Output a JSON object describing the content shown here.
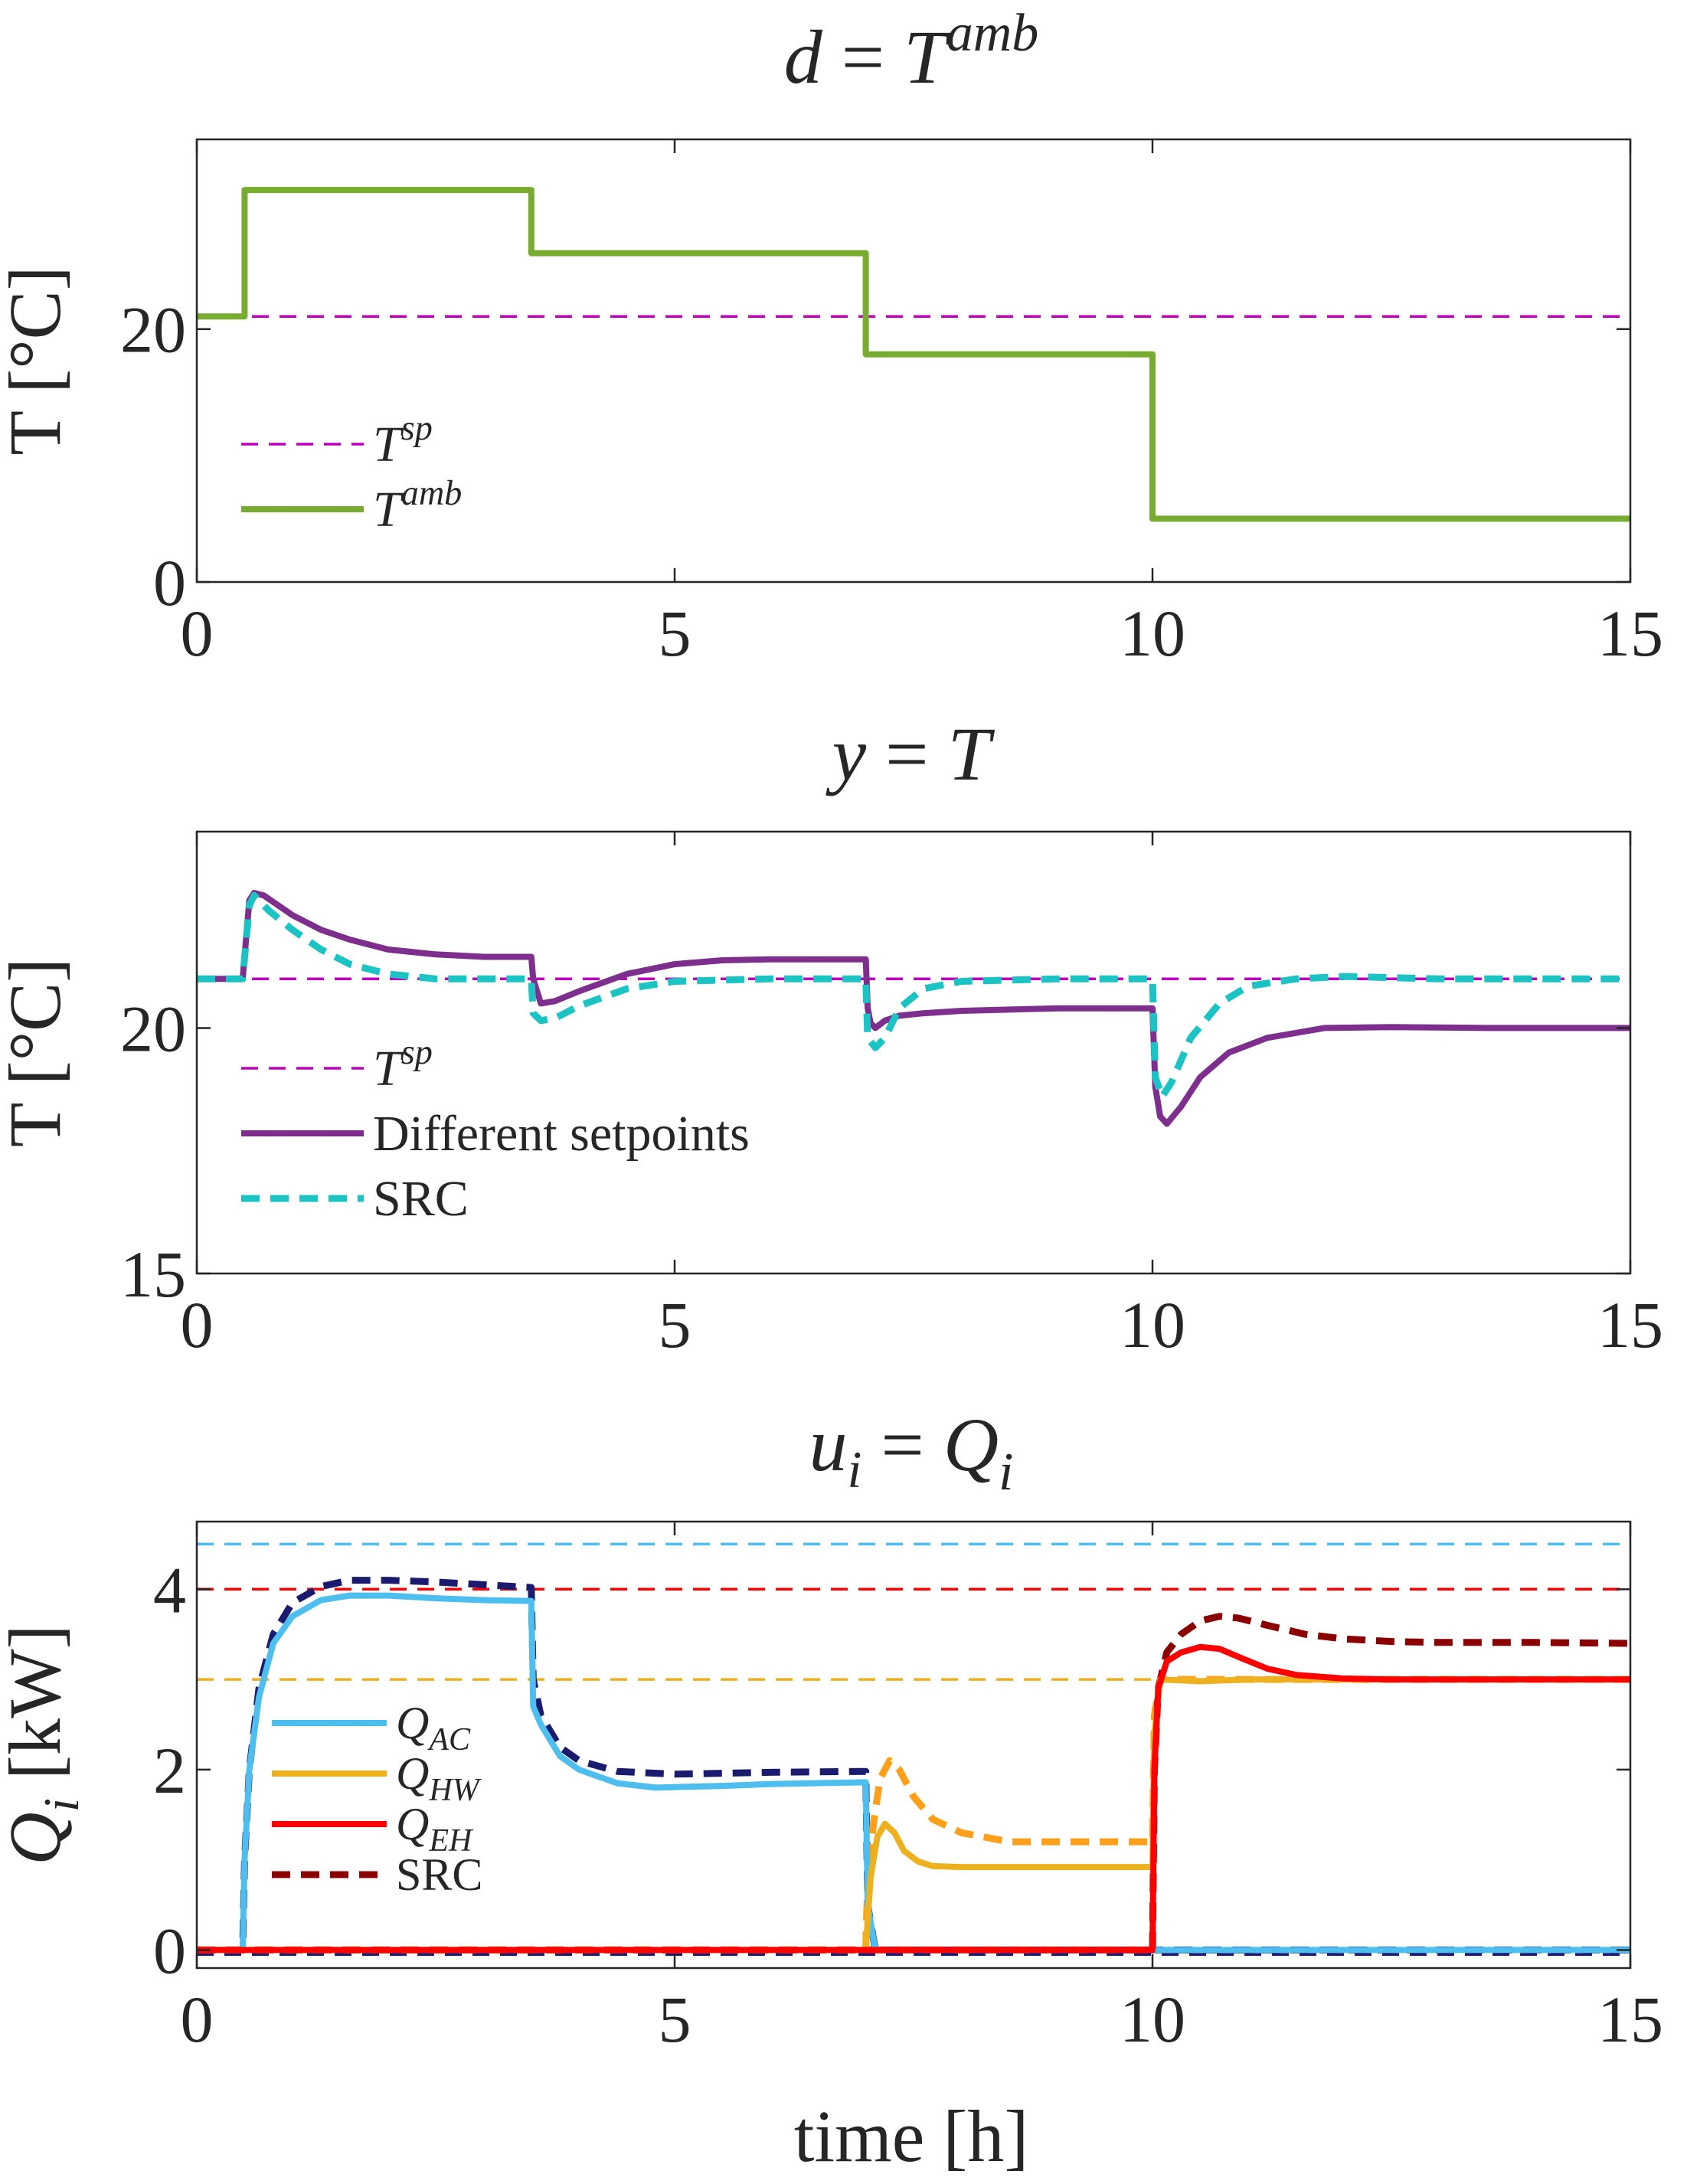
{
  "figure": {
    "xlabel": "time [h]"
  },
  "colors": {
    "axis": "#262626",
    "green": "#77ac30",
    "magenta": "#bf00bf",
    "purple": "#7e2f8e",
    "cyan": "#1bc3c3",
    "lightblue": "#4dbeee",
    "orange": "#edb120",
    "red": "#ff0000",
    "darkred": "#8b0000",
    "navy": "#1a1a6e",
    "srcOrange": "#ff9f1a"
  },
  "chart_data": [
    {
      "type": "line",
      "title": {
        "lhs": "d",
        "eq": "=",
        "base": "T",
        "sup": "amb"
      },
      "xlabel": "",
      "ylabel": "T [°C]",
      "xlim": [
        0,
        15
      ],
      "ylim": [
        0,
        35
      ],
      "xticks": [
        "0",
        "5",
        "10",
        "15"
      ],
      "xtick_values": [
        0,
        5,
        10,
        15
      ],
      "yticks": [
        "0",
        "20"
      ],
      "ytick_values": [
        0,
        20
      ],
      "legend": {
        "placement": "lower-left",
        "entries": [
          {
            "base": "T",
            "sup": "sp",
            "sub": ""
          },
          {
            "base": "T",
            "sup": "amb",
            "sub": ""
          }
        ]
      },
      "series": [
        {
          "name": "Tsp",
          "style": "thin-dashed",
          "color": "magenta",
          "x": [
            0,
            15
          ],
          "y": [
            21,
            21
          ]
        },
        {
          "name": "Tamb",
          "style": "thick-solid",
          "color": "green",
          "x": [
            0,
            0.5,
            0.5,
            3.5,
            3.5,
            7,
            7,
            10,
            10,
            15
          ],
          "y": [
            21,
            21,
            31,
            31,
            26,
            26,
            18,
            18,
            5,
            5
          ]
        }
      ]
    },
    {
      "type": "line",
      "title": {
        "lhs": "y",
        "eq": "=",
        "base": "T",
        "sup": ""
      },
      "xlabel": "",
      "ylabel": "T [°C]",
      "xlim": [
        0,
        15
      ],
      "ylim": [
        15,
        24
      ],
      "xticks": [
        "0",
        "5",
        "10",
        "15"
      ],
      "xtick_values": [
        0,
        5,
        10,
        15
      ],
      "yticks": [
        "15",
        "20"
      ],
      "ytick_values": [
        15,
        20
      ],
      "legend": {
        "placement": "lower-left",
        "entries": [
          {
            "base": "T",
            "sup": "sp",
            "sub": ""
          },
          {
            "text": "Different setpoints"
          },
          {
            "text": "SRC"
          }
        ]
      },
      "series": [
        {
          "name": "Tsp",
          "style": "thin-dashed",
          "color": "magenta",
          "x": [
            0,
            15
          ],
          "y": [
            21,
            21
          ]
        },
        {
          "name": "Different setpoints",
          "style": "thick-solid",
          "color": "purple",
          "x": [
            0,
            0.48,
            0.55,
            0.6,
            0.7,
            0.85,
            1.0,
            1.3,
            1.6,
            2.0,
            2.5,
            3.0,
            3.5,
            3.52,
            3.6,
            3.75,
            4.0,
            4.5,
            5.0,
            5.5,
            6.0,
            7.0,
            7.02,
            7.05,
            7.1,
            7.2,
            7.35,
            7.6,
            8.0,
            9.0,
            10.0,
            10.03,
            10.08,
            10.15,
            10.3,
            10.5,
            10.8,
            11.2,
            11.8,
            12.5,
            13.5,
            15
          ],
          "y": [
            21,
            21,
            22.6,
            22.75,
            22.7,
            22.5,
            22.3,
            22.0,
            21.8,
            21.6,
            21.5,
            21.45,
            21.45,
            21.0,
            20.5,
            20.55,
            20.75,
            21.1,
            21.3,
            21.38,
            21.4,
            21.4,
            20.4,
            20.1,
            20.0,
            20.15,
            20.25,
            20.3,
            20.35,
            20.4,
            20.4,
            18.8,
            18.2,
            18.05,
            18.4,
            19.0,
            19.5,
            19.8,
            20.0,
            20.02,
            20.0,
            20.0
          ]
        },
        {
          "name": "SRC",
          "style": "thick-dashed",
          "color": "cyan",
          "x": [
            0,
            0.48,
            0.55,
            0.6,
            0.75,
            1.0,
            1.3,
            1.6,
            2.0,
            2.5,
            3.0,
            3.5,
            3.52,
            3.6,
            3.75,
            4.0,
            4.5,
            5.0,
            6.0,
            7.0,
            7.02,
            7.1,
            7.2,
            7.35,
            7.6,
            8.0,
            9.0,
            10.0,
            10.03,
            10.1,
            10.2,
            10.4,
            10.7,
            11.0,
            11.5,
            12.0,
            13.0,
            15
          ],
          "y": [
            21,
            21,
            22.5,
            22.7,
            22.4,
            22.0,
            21.6,
            21.3,
            21.1,
            21.0,
            21.0,
            21.0,
            20.3,
            20.15,
            20.2,
            20.45,
            20.8,
            20.95,
            21.0,
            21.0,
            19.8,
            19.6,
            19.8,
            20.4,
            20.8,
            20.95,
            21.0,
            21.0,
            19.0,
            18.6,
            18.9,
            19.8,
            20.5,
            20.85,
            21.0,
            21.05,
            21.0,
            21.0
          ]
        }
      ]
    },
    {
      "type": "line",
      "title": {
        "lhs": "u",
        "lhs_sub": "i",
        "eq": "=",
        "base": "Q",
        "sub": "i"
      },
      "xlabel": "time [h]",
      "ylabel": {
        "base": "Q",
        "sub": "i",
        "unit": " [kW]"
      },
      "xlim": [
        0,
        15
      ],
      "ylim": [
        -0.2,
        4.75
      ],
      "xticks": [
        "0",
        "5",
        "10",
        "15"
      ],
      "xtick_values": [
        0,
        5,
        10,
        15
      ],
      "yticks": [
        "0",
        "2",
        "4"
      ],
      "ytick_values": [
        0,
        2,
        4
      ],
      "legend": {
        "placement": "lower-left",
        "entries": [
          {
            "base": "Q",
            "sub": "AC",
            "sup": ""
          },
          {
            "base": "Q",
            "sub": "HW",
            "sup": ""
          },
          {
            "base": "Q",
            "sub": "EH",
            "sup": ""
          },
          {
            "text": "SRC"
          }
        ]
      },
      "series": [
        {
          "name": "Qmax AC",
          "style": "thin-dashed",
          "color": "lightblue",
          "x": [
            0,
            15
          ],
          "y": [
            4.5,
            4.5
          ]
        },
        {
          "name": "Qmax EH",
          "style": "thin-dashed",
          "color": "red",
          "x": [
            0,
            15
          ],
          "y": [
            4,
            4
          ]
        },
        {
          "name": "Qmax HW",
          "style": "thin-dashed",
          "color": "orange",
          "x": [
            0,
            15
          ],
          "y": [
            3,
            3
          ]
        },
        {
          "name": "Qmin",
          "style": "thin-dashed",
          "color": "navy",
          "x": [
            0,
            15
          ],
          "y": [
            -0.05,
            -0.05
          ]
        },
        {
          "name": "SRC AC",
          "style": "thick-dashed",
          "color": "navy",
          "x": [
            0,
            0.48,
            0.5,
            0.55,
            0.65,
            0.8,
            1.0,
            1.3,
            1.6,
            2.0,
            2.5,
            3.0,
            3.5,
            3.52,
            3.6,
            3.8,
            4.0,
            4.4,
            5.0,
            6.0,
            7.0,
            7.02,
            7.1,
            15
          ],
          "y": [
            0,
            0,
            1.0,
            2.0,
            2.9,
            3.5,
            3.85,
            4.03,
            4.1,
            4.1,
            4.08,
            4.05,
            4.02,
            3.0,
            2.6,
            2.25,
            2.1,
            1.98,
            1.95,
            1.97,
            1.98,
            0.5,
            0,
            0
          ]
        },
        {
          "name": "SRC HW",
          "style": "thick-dashed",
          "color": "srcOrange",
          "x": [
            0,
            7.0,
            7.02,
            7.08,
            7.15,
            7.25,
            7.35,
            7.5,
            7.7,
            8.0,
            8.5,
            9.0,
            10.0,
            10.02,
            10.08,
            15
          ],
          "y": [
            0,
            0,
            0.8,
            1.4,
            1.9,
            2.1,
            2.0,
            1.7,
            1.45,
            1.3,
            1.2,
            1.2,
            1.2,
            2.6,
            3.0,
            3.0
          ]
        },
        {
          "name": "SRC EH",
          "style": "thick-dashed",
          "color": "darkred",
          "x": [
            10.0,
            10.02,
            10.06,
            10.15,
            10.3,
            10.5,
            10.7,
            10.9,
            11.2,
            11.6,
            12.0,
            12.5,
            13.0,
            14.0,
            15.0
          ],
          "y": [
            0,
            2.0,
            2.9,
            3.3,
            3.5,
            3.65,
            3.7,
            3.68,
            3.6,
            3.5,
            3.45,
            3.42,
            3.41,
            3.41,
            3.4
          ]
        },
        {
          "name": "SRC EH low",
          "style": "thick-dashed",
          "color": "red",
          "x": [
            0,
            10.0
          ],
          "y": [
            0,
            0
          ]
        },
        {
          "name": "Q_AC",
          "style": "thick-solid",
          "color": "lightblue",
          "x": [
            0,
            0.48,
            0.5,
            0.55,
            0.65,
            0.8,
            1.0,
            1.3,
            1.6,
            2.0,
            2.5,
            3.0,
            3.5,
            3.52,
            3.6,
            3.8,
            4.0,
            4.4,
            4.8,
            5.5,
            6.0,
            7.0,
            7.02,
            7.1,
            15
          ],
          "y": [
            0,
            0,
            1.0,
            2.0,
            2.8,
            3.4,
            3.7,
            3.88,
            3.93,
            3.93,
            3.9,
            3.88,
            3.87,
            2.7,
            2.5,
            2.15,
            2.0,
            1.85,
            1.8,
            1.82,
            1.84,
            1.86,
            0.5,
            0,
            0
          ]
        },
        {
          "name": "Q_HW",
          "style": "thick-solid",
          "color": "orange",
          "x": [
            0,
            7.0,
            7.05,
            7.12,
            7.2,
            7.3,
            7.4,
            7.55,
            7.7,
            8.0,
            9.0,
            10.0,
            10.02,
            10.08,
            10.5,
            11.0,
            15
          ],
          "y": [
            0,
            0,
            0.8,
            1.25,
            1.4,
            1.3,
            1.1,
            0.98,
            0.93,
            0.92,
            0.92,
            0.92,
            2.4,
            3.0,
            2.98,
            3.0,
            3.0
          ]
        },
        {
          "name": "Q_EH",
          "style": "thick-solid",
          "color": "red",
          "x": [
            0,
            10.0,
            10.02,
            10.06,
            10.15,
            10.3,
            10.5,
            10.7,
            10.9,
            11.2,
            11.5,
            12.0,
            12.5,
            13.0,
            15.0
          ],
          "y": [
            0,
            0,
            2.0,
            2.9,
            3.2,
            3.3,
            3.36,
            3.34,
            3.25,
            3.12,
            3.05,
            3.01,
            3.0,
            3.0,
            3.0
          ]
        }
      ]
    }
  ]
}
